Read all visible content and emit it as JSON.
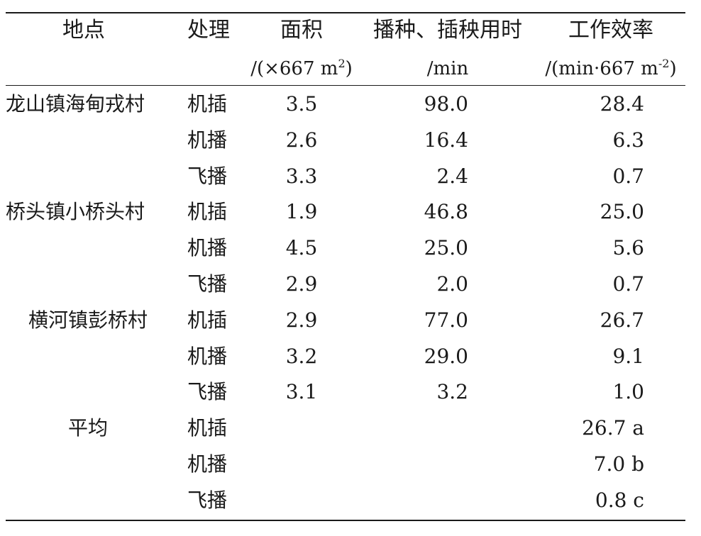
{
  "headers": {
    "site": "地点",
    "treatment": "处理",
    "area_label": "面积",
    "area_unit_prefix": "/(×667 m",
    "area_unit_sup": "2",
    "area_unit_suffix": ")",
    "time_label": "播种、插秧用时",
    "time_unit": "/min",
    "eff_label": "工作效率",
    "eff_unit_prefix": "/(min·667 m",
    "eff_unit_sup": "-2",
    "eff_unit_suffix": ")"
  },
  "rows": [
    {
      "site": "龙山镇海甸戎村",
      "treatment": "机插",
      "area": "3.5",
      "time": "98.0",
      "efficiency": "28.4"
    },
    {
      "site": "",
      "treatment": "机播",
      "area": "2.6",
      "time": "16.4",
      "efficiency": "6.3"
    },
    {
      "site": "",
      "treatment": "飞播",
      "area": "3.3",
      "time": "2.4",
      "efficiency": "0.7"
    },
    {
      "site": "桥头镇小桥头村",
      "treatment": "机插",
      "area": "1.9",
      "time": "46.8",
      "efficiency": "25.0"
    },
    {
      "site": "",
      "treatment": "机播",
      "area": "4.5",
      "time": "25.0",
      "efficiency": "5.6"
    },
    {
      "site": "",
      "treatment": "飞播",
      "area": "2.9",
      "time": "2.0",
      "efficiency": "0.7"
    },
    {
      "site": "横河镇彭桥村",
      "treatment": "机插",
      "area": "2.9",
      "time": "77.0",
      "efficiency": "26.7"
    },
    {
      "site": "",
      "treatment": "机播",
      "area": "3.2",
      "time": "29.0",
      "efficiency": "9.1"
    },
    {
      "site": "",
      "treatment": "飞播",
      "area": "3.1",
      "time": "3.2",
      "efficiency": "1.0"
    },
    {
      "site": "平均",
      "treatment": "机插",
      "area": "",
      "time": "",
      "efficiency": "26.7 a"
    },
    {
      "site": "",
      "treatment": "机播",
      "area": "",
      "time": "",
      "efficiency": "7.0 b"
    },
    {
      "site": "",
      "treatment": "飞播",
      "area": "",
      "time": "",
      "efficiency": "0.8 c"
    }
  ]
}
